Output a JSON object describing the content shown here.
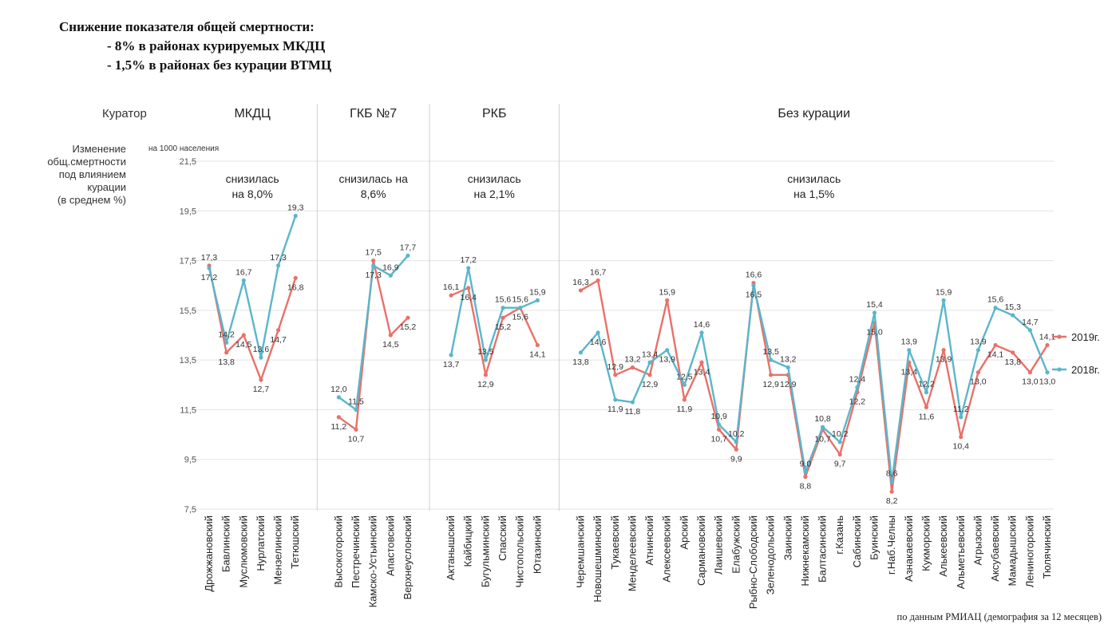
{
  "title": {
    "line1": "Снижение показателя общей смертности:",
    "line2": "- 8% в районах курируемых МКДЦ",
    "line3": "- 1,5% в районах без курации ВТМЦ"
  },
  "labels": {
    "curator": "Куратор",
    "change": [
      "Изменение",
      "общ.смертности",
      "под влиянием",
      "курации",
      "(в среднем %)"
    ],
    "unit": "на 1000 населения",
    "source": "по данным РМИАЦ (демография за 12 месяцев)"
  },
  "colors": {
    "y2019": "#e8716a",
    "y2018": "#5bb6c9",
    "grid": "#e3e3e3",
    "divider": "#cfcfcf"
  },
  "chart_data": {
    "type": "line",
    "ylim": [
      7.5,
      21.5
    ],
    "yticks": [
      "7,5",
      "9,5",
      "11,5",
      "13,5",
      "15,5",
      "17,5",
      "19,5",
      "21,5"
    ],
    "groups": [
      {
        "name": "МКДЦ",
        "note": [
          "снизилась",
          "на 8,0%"
        ],
        "start": 0,
        "end": 5
      },
      {
        "name": "ГКБ №7",
        "note": [
          "снизилась на",
          "8,6%"
        ],
        "start": 6,
        "end": 10
      },
      {
        "name": "РКБ",
        "note": [
          "снизилась",
          "на 2,1%"
        ],
        "start": 11,
        "end": 16
      },
      {
        "name": "Без курации",
        "note": [
          "снизилась",
          "на 1,5%"
        ],
        "start": 17,
        "end": 44
      }
    ],
    "categories": [
      "Дрожжановский",
      "Бавлинский",
      "Муслюмовский",
      "Нурлатский",
      "Мензелинский",
      "Тетюшский",
      "Высокогорский",
      "Пестречинский",
      "Камско-Устьинский",
      "Апастовский",
      "Верхнеуслонский",
      "Актанышский",
      "Кайбицкий",
      "Бугульминский",
      "Спасский",
      "Чистопольский",
      "Ютазинский",
      "Черемшанский",
      "Новошешминский",
      "Тукаевский",
      "Менделеевский",
      "Атнинский",
      "Алексеевский",
      "Арский",
      "Сармановский",
      "Лаишевский",
      "Елабужский",
      "Рыбно-Слободский",
      "Зеленодольский",
      "Заинский",
      "Нижнекамский",
      "Балтасинский",
      "г.Казань",
      "Сабинский",
      "Буинский",
      "г.Наб.Челны",
      "Азнакаевский",
      "Кукморский",
      "Алькеевский",
      "Альметьевский",
      "Агрызский",
      "Аксубаевский",
      "Мамадышский",
      "Лениногорский",
      "Тюлячинский"
    ],
    "series": [
      {
        "name": "2019г.",
        "values": [
          17.3,
          13.8,
          14.5,
          12.7,
          14.7,
          16.8,
          11.2,
          10.7,
          17.5,
          14.5,
          15.2,
          16.1,
          16.4,
          12.9,
          15.2,
          15.6,
          14.1,
          16.3,
          16.7,
          12.9,
          13.2,
          12.9,
          15.9,
          11.9,
          13.4,
          10.7,
          9.9,
          16.6,
          12.9,
          12.9,
          8.8,
          10.7,
          9.7,
          12.2,
          15.0,
          8.2,
          13.4,
          11.6,
          13.9,
          10.4,
          13.0,
          14.1,
          13.8,
          13.0,
          14.1
        ]
      },
      {
        "name": "2018г.",
        "values": [
          17.2,
          14.2,
          16.7,
          13.6,
          17.3,
          19.3,
          12.0,
          11.5,
          17.3,
          16.9,
          17.7,
          13.7,
          17.2,
          13.5,
          15.6,
          15.6,
          15.9,
          13.8,
          14.6,
          11.9,
          11.8,
          13.4,
          13.9,
          12.5,
          14.6,
          10.9,
          10.2,
          16.5,
          13.5,
          13.2,
          9.0,
          10.8,
          10.2,
          12.4,
          15.4,
          8.6,
          13.9,
          12.2,
          15.9,
          11.2,
          13.9,
          15.6,
          15.3,
          14.7,
          13.0
        ]
      }
    ]
  }
}
